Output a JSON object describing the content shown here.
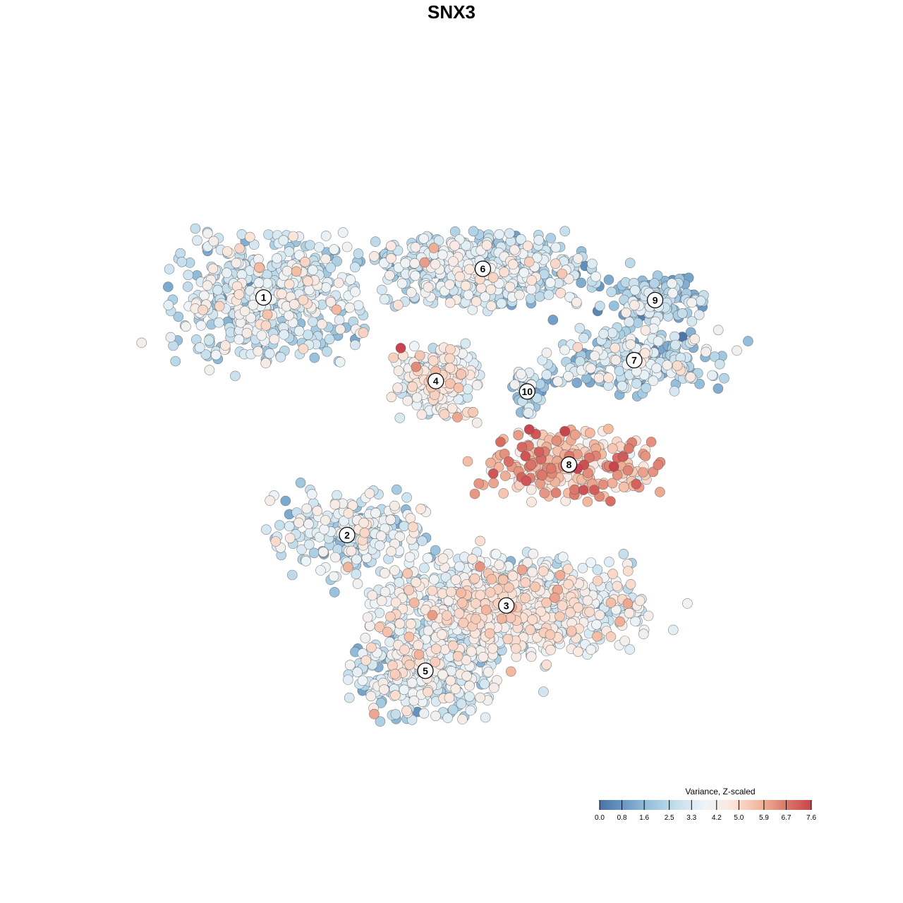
{
  "chart_data": {
    "type": "scatter",
    "title": "SNX3",
    "xlabel": "",
    "ylabel": "",
    "grid": false,
    "color_scale": {
      "title": "Variance, Z-scaled",
      "ticks": [
        0.0,
        0.8,
        1.6,
        2.5,
        3.3,
        4.2,
        5.0,
        5.9,
        6.7,
        7.6
      ],
      "tick_labels": [
        "0.0",
        "0.8",
        "1.6",
        "2.5",
        "3.3",
        "4.2",
        "5.0",
        "5.9",
        "6.7",
        "7.6"
      ],
      "min": 0.0,
      "max": 7.6,
      "colors": [
        "#4a73a6",
        "#6e9cc7",
        "#9cc5de",
        "#c9e1ee",
        "#eef4f7",
        "#fbe6dc",
        "#f3b9a0",
        "#dd7a6b",
        "#c9444e"
      ]
    },
    "legend_placement": "bottom-right",
    "clusters": [
      {
        "label": "1",
        "x": -7.2,
        "y": 5.9,
        "spread": [
          3.2,
          2.1
        ],
        "n": 520,
        "level": 3.0
      },
      {
        "label": "6",
        "x": 1.2,
        "y": 7.0,
        "spread": [
          3.6,
          1.2
        ],
        "n": 560,
        "level": 2.9
      },
      {
        "label": "9",
        "x": 7.8,
        "y": 5.8,
        "spread": [
          1.6,
          0.8
        ],
        "n": 150,
        "level": 2.2
      },
      {
        "label": "7",
        "x": 7.0,
        "y": 3.5,
        "spread": [
          3.0,
          1.1
        ],
        "n": 270,
        "level": 2.6
      },
      {
        "label": "4",
        "x": -0.6,
        "y": 2.7,
        "spread": [
          1.4,
          1.2
        ],
        "n": 240,
        "level": 3.9
      },
      {
        "label": "10",
        "x": 2.9,
        "y": 2.3,
        "spread": [
          0.5,
          0.8
        ],
        "n": 45,
        "level": 2.3
      },
      {
        "label": "8",
        "x": 4.5,
        "y": -0.5,
        "spread": [
          3.0,
          1.2
        ],
        "n": 250,
        "level": 5.6
      },
      {
        "label": "2",
        "x": -4.0,
        "y": -3.2,
        "spread": [
          2.6,
          1.5
        ],
        "n": 230,
        "level": 3.2
      },
      {
        "label": "3",
        "x": 2.1,
        "y": -5.9,
        "spread": [
          4.4,
          1.7
        ],
        "n": 900,
        "level": 3.8
      },
      {
        "label": "5",
        "x": -1.0,
        "y": -8.4,
        "spread": [
          2.4,
          1.6
        ],
        "n": 420,
        "level": 3.1
      }
    ]
  }
}
